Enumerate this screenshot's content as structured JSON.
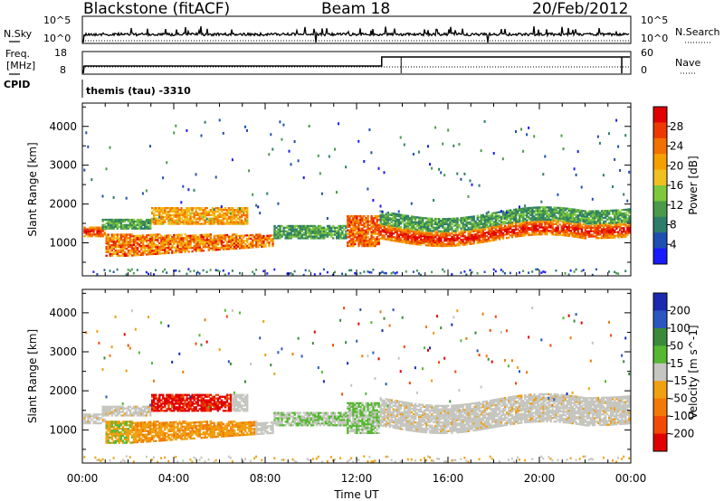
{
  "header": {
    "title": "Blackstone (fitACF)",
    "beam": "Beam 18",
    "date": "20/Feb/2012"
  },
  "top_panels": {
    "noise": {
      "left_label": "N.Sky",
      "right_label": "N.Search",
      "left_ticks": [
        "10^5",
        "10^0"
      ],
      "right_ticks": [
        "10^5",
        "10^0"
      ]
    },
    "freq": {
      "left_label_line1": "Freq.",
      "left_label_line2": "[MHz]",
      "right_label": "Nave",
      "left_ticks": [
        "18",
        "8"
      ],
      "right_ticks": [
        "60",
        "0"
      ]
    },
    "cpid_label": "CPID",
    "cpid_text": "themis (tau) -3310"
  },
  "colors": {
    "power": [
      "#1a1aff",
      "#1f4fb0",
      "#2e7d6b",
      "#4a9a4a",
      "#7ec83c",
      "#f0c020",
      "#f5a000",
      "#f27000",
      "#ee3800",
      "#e00000"
    ],
    "velocity": [
      "#1a2ab0",
      "#2a56c0",
      "#3a8a3a",
      "#55b830",
      "#c6c6c0",
      "#f0a010",
      "#f27808",
      "#f04a04",
      "#e00000"
    ]
  },
  "chart_data": [
    {
      "type": "heatmap",
      "quantity": "power",
      "ylabel": "Slant Range [km]",
      "ylim": [
        150,
        4600
      ],
      "yticks": [
        1000,
        2000,
        3000,
        4000
      ],
      "xlim": [
        0,
        24
      ],
      "xticks": [
        "00:00",
        "04:00",
        "08:00",
        "12:00",
        "16:00",
        "20:00",
        "00:00"
      ],
      "colorbar_label": "Power [dB]",
      "colorbar_ticks": [
        "4",
        "8",
        "12",
        "16",
        "20",
        "24",
        "28"
      ]
    },
    {
      "type": "heatmap",
      "quantity": "velocity",
      "ylabel": "Slant Range [km]",
      "ylim": [
        150,
        4600
      ],
      "yticks": [
        1000,
        2000,
        3000,
        4000
      ],
      "xlim": [
        0,
        24
      ],
      "xticks": [
        "00:00",
        "04:00",
        "08:00",
        "12:00",
        "16:00",
        "20:00",
        "00:00"
      ],
      "xlabel": "Time UT",
      "colorbar_label": "Velocity [m s^-1]",
      "colorbar_ticks": [
        "200",
        "100",
        "50",
        "15",
        "-15",
        "-50",
        "-100",
        "-200"
      ]
    }
  ]
}
